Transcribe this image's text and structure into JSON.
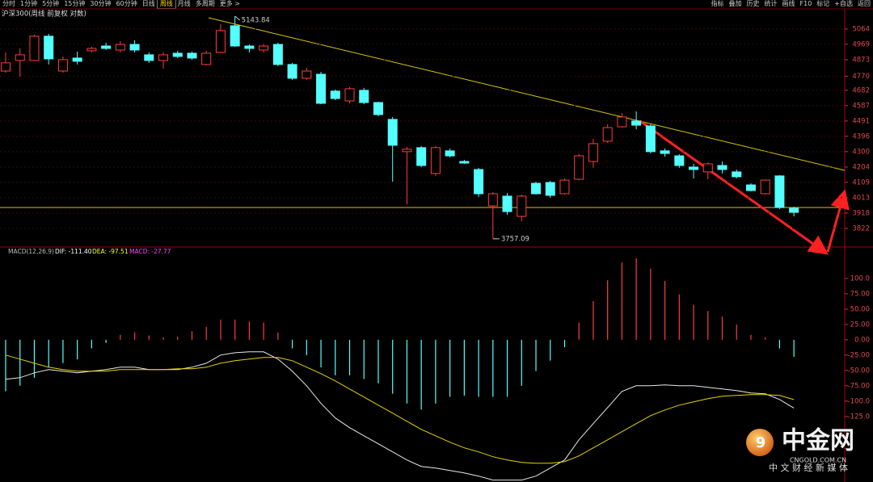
{
  "toolbar": {
    "left": [
      "分时",
      "1分钟",
      "5分钟",
      "15分钟",
      "30分钟",
      "60分钟",
      "日线",
      "周线",
      "月线",
      "多周期",
      "更多 >"
    ],
    "active": 7,
    "right": [
      "指标",
      "叠加",
      "历史",
      "统计",
      "画线",
      "F10",
      "标记",
      "+自选",
      "返回"
    ]
  },
  "watermark": {
    "brand": "中金网",
    "domain": "CNGOLD.COM.CN",
    "slogan": "中 文 财 经 新 媒 体"
  },
  "chart_data": [
    {
      "type": "candlestick",
      "title": "沪深300(周线 前复权 对数)",
      "up_color": "#ff3c3c",
      "down_color": "#54ffff",
      "ylim": [
        3711,
        5154
      ],
      "yticks": [
        5064,
        4969,
        4873,
        4770,
        4682,
        4587,
        4491,
        4396,
        4300,
        4204,
        4109,
        4013,
        3918,
        3822
      ],
      "grid": true,
      "open": [
        4802,
        4868,
        4868,
        5019,
        4802,
        4883,
        4928,
        4958,
        4933,
        4968,
        4903,
        4868,
        4913,
        4913,
        4843,
        4918,
        5084,
        4958,
        4933,
        4968,
        4843,
        4757,
        4782,
        4677,
        4616,
        4682,
        4606,
        4501,
        4300,
        4325,
        4164,
        4305,
        4239,
        4189,
        3962,
        4023,
        3897,
        4103,
        4108,
        4038,
        4128,
        4239,
        4365,
        4455,
        4491,
        4460,
        4305,
        4274,
        4204,
        4174,
        4214,
        4174,
        4093,
        4038,
        4149,
        3947
      ],
      "high": [
        4918,
        4943,
        5029,
        5034,
        4893,
        4923,
        4953,
        4978,
        4988,
        4994,
        4918,
        4918,
        4928,
        4923,
        4928,
        5094,
        5143.84,
        4968,
        4968,
        4978,
        4853,
        4823,
        4797,
        4687,
        4702,
        4697,
        4611,
        4516,
        4330,
        4335,
        4335,
        4320,
        4249,
        4199,
        4048,
        4043,
        4033,
        4113,
        4118,
        4133,
        4284,
        4380,
        4470,
        4541,
        4551,
        4470,
        4320,
        4284,
        4224,
        4234,
        4239,
        4189,
        4103,
        4128,
        4154,
        3957
      ],
      "low": [
        4792,
        4767,
        4868,
        4843,
        4792,
        4843,
        4918,
        4933,
        4918,
        4918,
        4853,
        4818,
        4883,
        4873,
        4838,
        4913,
        4953,
        4918,
        4918,
        4833,
        4747,
        4747,
        4596,
        4621,
        4601,
        4596,
        4521,
        4113,
        3972,
        4204,
        4149,
        4264,
        4224,
        4018,
        3757.09,
        3907,
        3867,
        4033,
        4013,
        4033,
        4123,
        4199,
        4355,
        4450,
        4440,
        4290,
        4269,
        4199,
        4133,
        4128,
        4164,
        4133,
        4053,
        4033,
        3942,
        3897
      ],
      "close": [
        4853,
        4903,
        5019,
        4878,
        4873,
        4863,
        4943,
        4943,
        4968,
        4933,
        4868,
        4903,
        4893,
        4883,
        4913,
        5054,
        4958,
        4943,
        4958,
        4843,
        4757,
        4802,
        4601,
        4631,
        4692,
        4606,
        4531,
        4340,
        4315,
        4214,
        4325,
        4274,
        4229,
        4038,
        4038,
        3927,
        4023,
        4038,
        4028,
        4123,
        4274,
        4350,
        4450,
        4516,
        4465,
        4300,
        4289,
        4214,
        4189,
        4224,
        4189,
        4144,
        4058,
        4123,
        3952,
        3922
      ]
    },
    {
      "type": "macd",
      "ylim": [
        -232,
        146
      ],
      "yticks": [
        {
          "value": 100,
          "label": "100.0"
        },
        {
          "value": 75,
          "label": "75.00"
        },
        {
          "value": 50,
          "label": "50.00"
        },
        {
          "value": 25,
          "label": "25.00"
        },
        {
          "value": 0,
          "label": "0.00"
        },
        {
          "value": -25,
          "label": "-25.00"
        },
        {
          "value": -50,
          "label": "-50.00"
        },
        {
          "value": -75,
          "label": "-75.00"
        },
        {
          "value": -100,
          "label": "-100.0"
        },
        {
          "value": -125,
          "label": "-125.0"
        }
      ],
      "legend": [
        {
          "text": "MACD(12,26,9)",
          "color": "#bbbbbb"
        },
        {
          "text": "DIF: -111.40",
          "color": "#ffffff"
        },
        {
          "text": "DEA: -97.51",
          "color": "#ffff33"
        },
        {
          "text": "MACD: -27.77",
          "color": "#ff44ff"
        }
      ],
      "up_color": "#ff3c3c",
      "down_color": "#54ffff",
      "histogram": [
        -84,
        -75,
        -62,
        -45,
        -38,
        -32,
        -14,
        -5,
        8,
        12,
        7,
        4,
        5,
        14,
        21,
        33,
        33,
        30,
        28,
        12,
        -14,
        -25,
        -45,
        -58,
        -58,
        -64,
        -71,
        -88,
        -104,
        -114,
        -104,
        -93,
        -91,
        -93,
        -93,
        -93,
        -75,
        -51,
        -34,
        -12,
        28,
        63,
        97,
        126,
        133,
        116,
        96,
        74,
        57,
        47,
        38,
        25,
        8,
        4,
        -14,
        -27.77
      ],
      "series": [
        {
          "color": "#e8e8e8",
          "values": [
            -64.5,
            -61.8,
            -53.9,
            -48.7,
            -51.3,
            -53.9,
            -51.3,
            -48.7,
            -44.7,
            -44.7,
            -48.7,
            -48.7,
            -48.7,
            -44.7,
            -38.2,
            -25,
            -21.1,
            -19.7,
            -19.7,
            -31.6,
            -51.3,
            -75,
            -103.9,
            -127.6,
            -143.4,
            -156.6,
            -169.7,
            -182.9,
            -196.1,
            -206.6,
            -209.2,
            -213.2,
            -217.1,
            -222.4,
            -228.9,
            -228.9,
            -228.9,
            -222.4,
            -209.2,
            -196.1,
            -163.2,
            -136.8,
            -110.5,
            -84.2,
            -75,
            -75,
            -73.7,
            -75,
            -75,
            -77.6,
            -80.3,
            -82.9,
            -86.8,
            -88.2,
            -97.4,
            -111.4
          ]
        },
        {
          "color": "#e6d200",
          "values": [
            -25,
            -31.6,
            -38.2,
            -44.7,
            -48.7,
            -51.3,
            -51.3,
            -51.3,
            -48.7,
            -48.7,
            -48.7,
            -48.7,
            -47.4,
            -47.4,
            -44.7,
            -38.2,
            -34.2,
            -31.6,
            -28.9,
            -28.9,
            -34.2,
            -44.7,
            -55.3,
            -67.1,
            -80.3,
            -93.4,
            -106.6,
            -119.7,
            -132.9,
            -146.1,
            -156.6,
            -167.1,
            -176.3,
            -182.9,
            -190.8,
            -196.1,
            -200,
            -201.3,
            -201.3,
            -198.7,
            -189.5,
            -176.3,
            -163.2,
            -150,
            -136.8,
            -123.7,
            -114.5,
            -106.6,
            -101.3,
            -96.1,
            -92.1,
            -90.8,
            -89.5,
            -89.5,
            -90.8,
            -97.51
          ]
        }
      ]
    }
  ]
}
